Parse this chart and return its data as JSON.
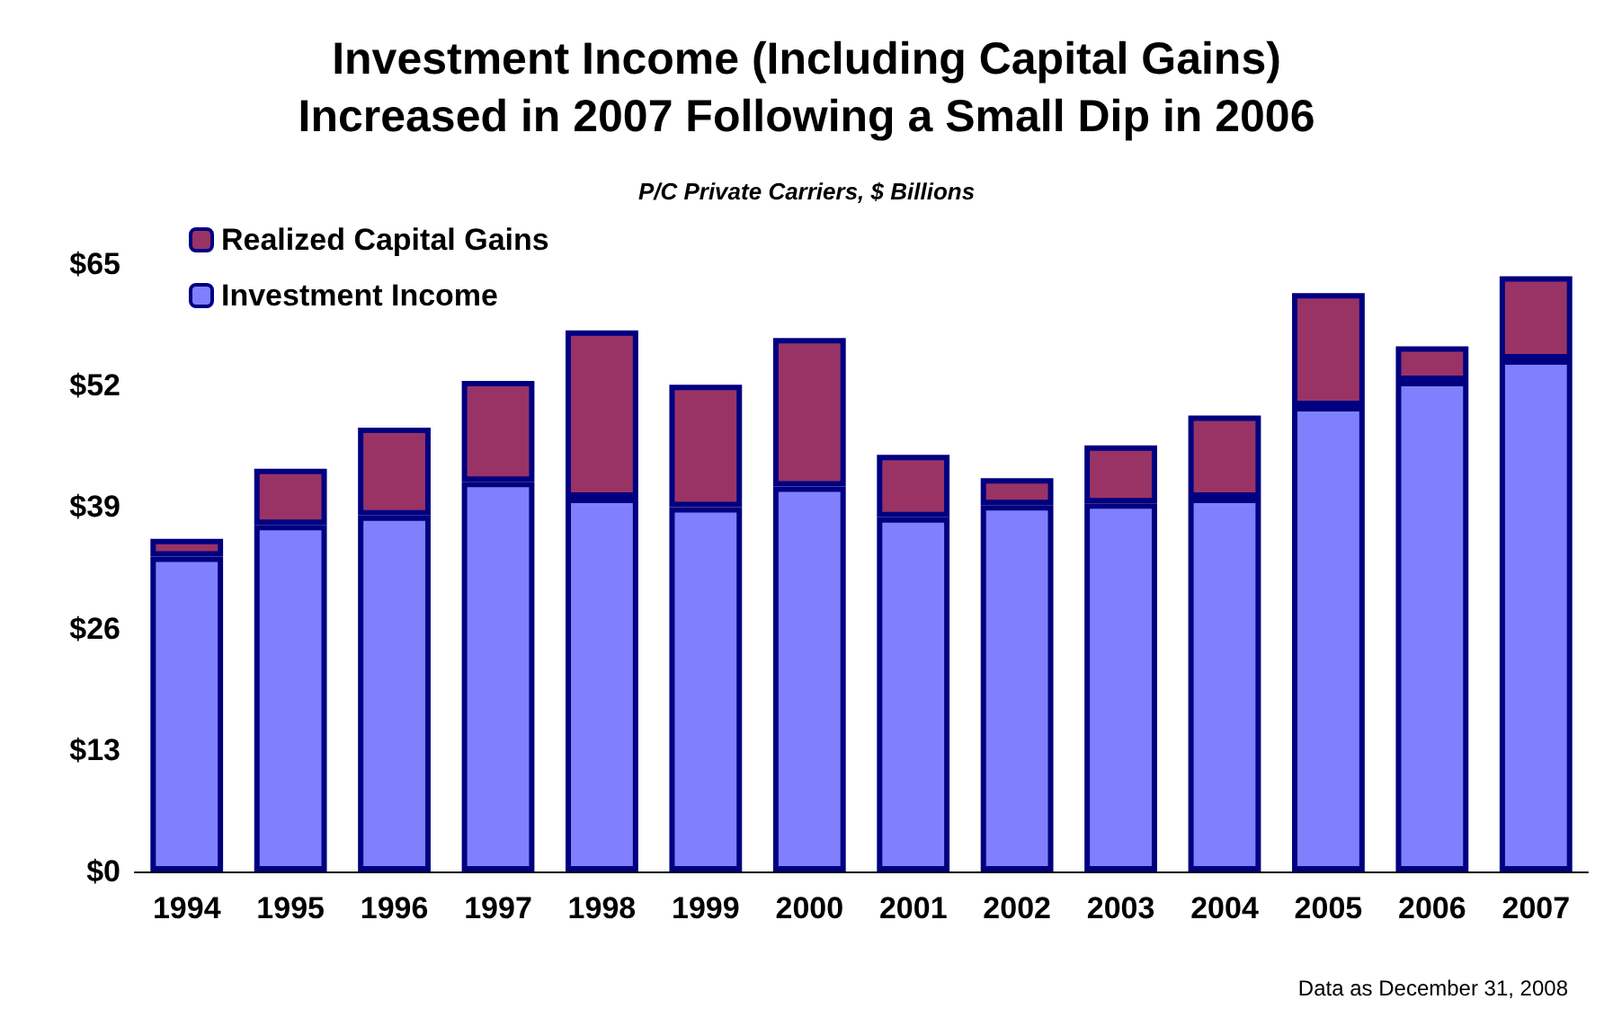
{
  "chart_data": {
    "type": "bar",
    "title": "Investment Income (Including Capital Gains)\nIncreased in 2007 Following a Small Dip in 2006",
    "subtitle": "P/C Private Carriers, $ Billions",
    "categories": [
      "1994",
      "1995",
      "1996",
      "1997",
      "1998",
      "1999",
      "2000",
      "2001",
      "2002",
      "2003",
      "2004",
      "2005",
      "2006",
      "2007"
    ],
    "series": [
      {
        "name": "Investment Income",
        "color": "#8080ff",
        "values": [
          33.7,
          37.1,
          38.1,
          41.7,
          40.0,
          39.0,
          41.2,
          37.9,
          39.2,
          39.4,
          40.0,
          49.8,
          52.5,
          54.8
        ]
      },
      {
        "name": "Realized Capital Gains",
        "color": "#993366",
        "values": [
          1.9,
          6.0,
          9.4,
          10.8,
          17.9,
          13.1,
          15.9,
          6.7,
          2.9,
          6.2,
          8.8,
          12.1,
          3.7,
          8.9
        ]
      }
    ],
    "stacked": true,
    "ylim": [
      0,
      65
    ],
    "yticks": [
      {
        "value": 0,
        "label": "$0"
      },
      {
        "value": 13,
        "label": "$13"
      },
      {
        "value": 26,
        "label": "$26"
      },
      {
        "value": 39,
        "label": "$39"
      },
      {
        "value": 52,
        "label": "$52"
      },
      {
        "value": 65,
        "label": "$65"
      }
    ],
    "grid": false,
    "legend": "top left",
    "annotations": [
      "Data as December 31, 2008"
    ]
  }
}
